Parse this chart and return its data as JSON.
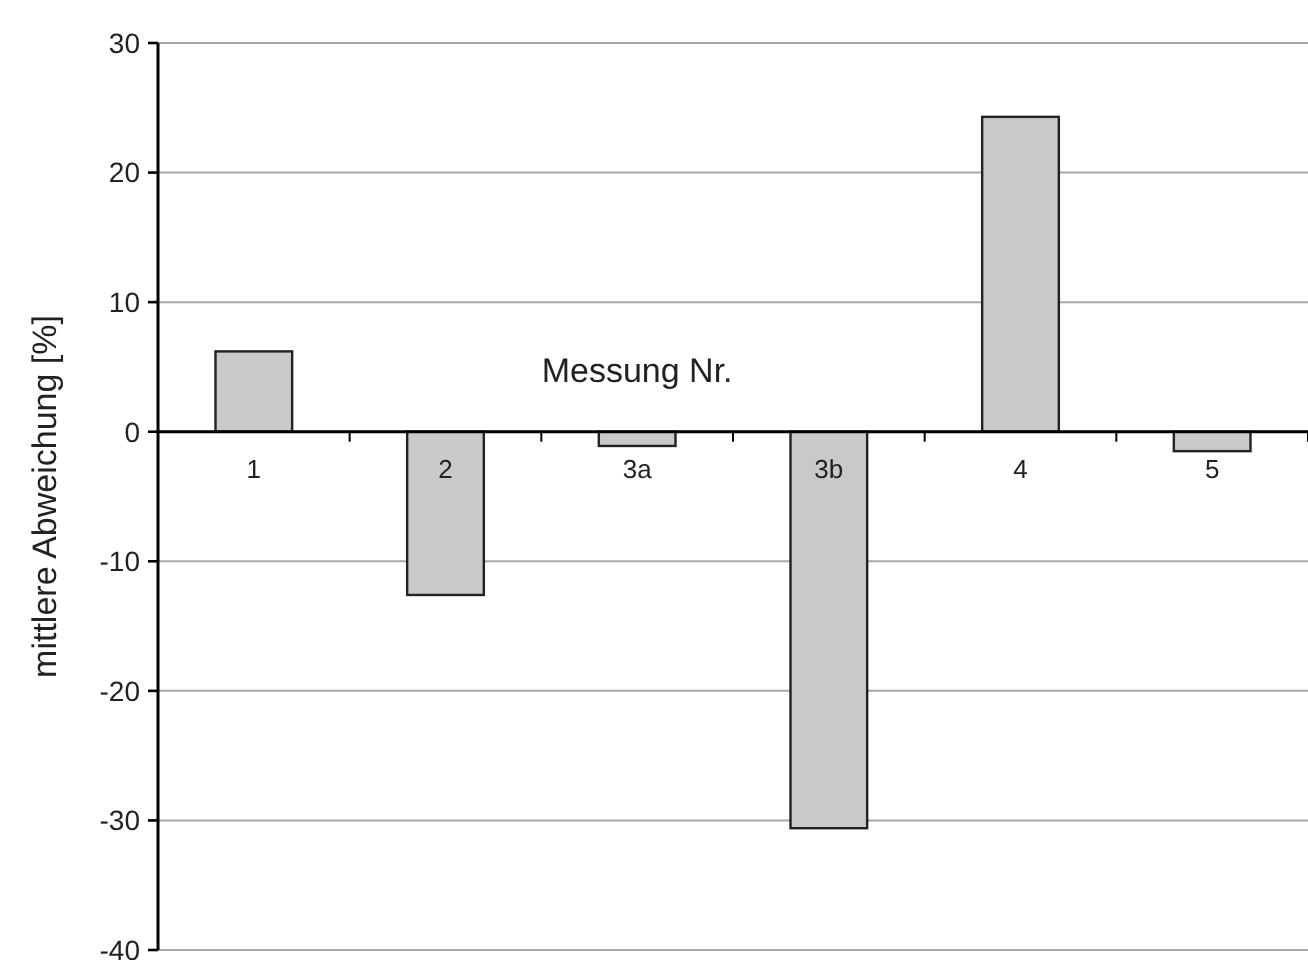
{
  "chart_data": {
    "type": "bar",
    "xlabel": "Messung Nr.",
    "ylabel": "mittlere Abweichung [%]",
    "categories": [
      "1",
      "2",
      "3a",
      "3b",
      "4",
      "5"
    ],
    "values": [
      6.2,
      -12.6,
      -1.1,
      -30.6,
      24.3,
      -1.5
    ],
    "color": "#c8c9cb",
    "ylim": [
      -40,
      30
    ],
    "yticks": [
      -40,
      -30,
      -20,
      -10,
      0,
      10,
      20,
      30
    ],
    "grid": "y"
  }
}
